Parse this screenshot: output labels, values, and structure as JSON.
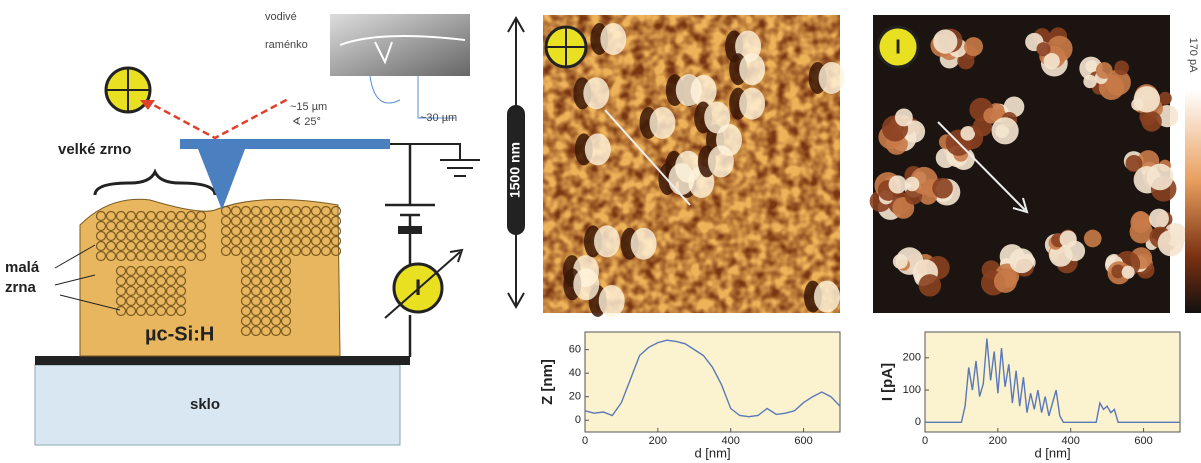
{
  "diagram": {
    "cantilever_label": [
      "vodivé",
      "raménko"
    ],
    "dimension_length": "~15 µm",
    "dimension_angle": "∢ 25°",
    "dimension_width": "~30 µm",
    "big_grain": "velké zrno",
    "small_grains": [
      "malá",
      "zrna"
    ],
    "material": "µc-Si:H",
    "substrate": "sklo",
    "meter": "I"
  },
  "images": {
    "scale": "1500 nm",
    "current_symbol": "I",
    "colorbar_max": "170 pA"
  },
  "chart_data": [
    {
      "type": "line",
      "xlabel": "d [nm]",
      "ylabel": "Z [nm]",
      "x": [
        0,
        25,
        50,
        75,
        100,
        125,
        150,
        175,
        200,
        225,
        250,
        275,
        300,
        325,
        350,
        375,
        400,
        425,
        450,
        475,
        500,
        525,
        550,
        575,
        600,
        625,
        650,
        675,
        700
      ],
      "series": [
        {
          "color": "#5b78b8",
          "values": [
            8,
            6,
            7,
            4,
            15,
            35,
            55,
            62,
            66,
            68,
            67,
            65,
            60,
            55,
            45,
            30,
            10,
            4,
            3,
            4,
            10,
            5,
            6,
            8,
            15,
            20,
            24,
            20,
            12
          ]
        }
      ],
      "xlim": [
        0,
        700
      ],
      "ylim": [
        -10,
        75
      ],
      "xticks": [
        0,
        200,
        400,
        600
      ],
      "yticks": [
        0,
        20,
        40,
        60
      ],
      "background": "#fbf3cf"
    },
    {
      "type": "line",
      "xlabel": "d [nm]",
      "ylabel": "I [pA]",
      "x": [
        0,
        50,
        100,
        110,
        120,
        130,
        140,
        150,
        160,
        170,
        180,
        190,
        200,
        210,
        220,
        230,
        240,
        250,
        260,
        270,
        280,
        290,
        300,
        310,
        320,
        330,
        340,
        350,
        360,
        370,
        380,
        400,
        450,
        470,
        480,
        490,
        500,
        510,
        520,
        530,
        600,
        700
      ],
      "series": [
        {
          "color": "#5b78b8",
          "values": [
            0,
            0,
            0,
            50,
            170,
            100,
            190,
            80,
            120,
            260,
            130,
            220,
            90,
            230,
            110,
            180,
            60,
            160,
            50,
            140,
            30,
            90,
            40,
            100,
            30,
            80,
            20,
            60,
            100,
            20,
            0,
            0,
            0,
            0,
            60,
            40,
            50,
            30,
            40,
            0,
            0,
            0
          ]
        }
      ],
      "xlim": [
        0,
        700
      ],
      "ylim": [
        -30,
        280
      ],
      "xticks": [
        0,
        200,
        400,
        600
      ],
      "yticks": [
        0,
        100,
        200
      ],
      "background": "#fbf3cf"
    }
  ]
}
